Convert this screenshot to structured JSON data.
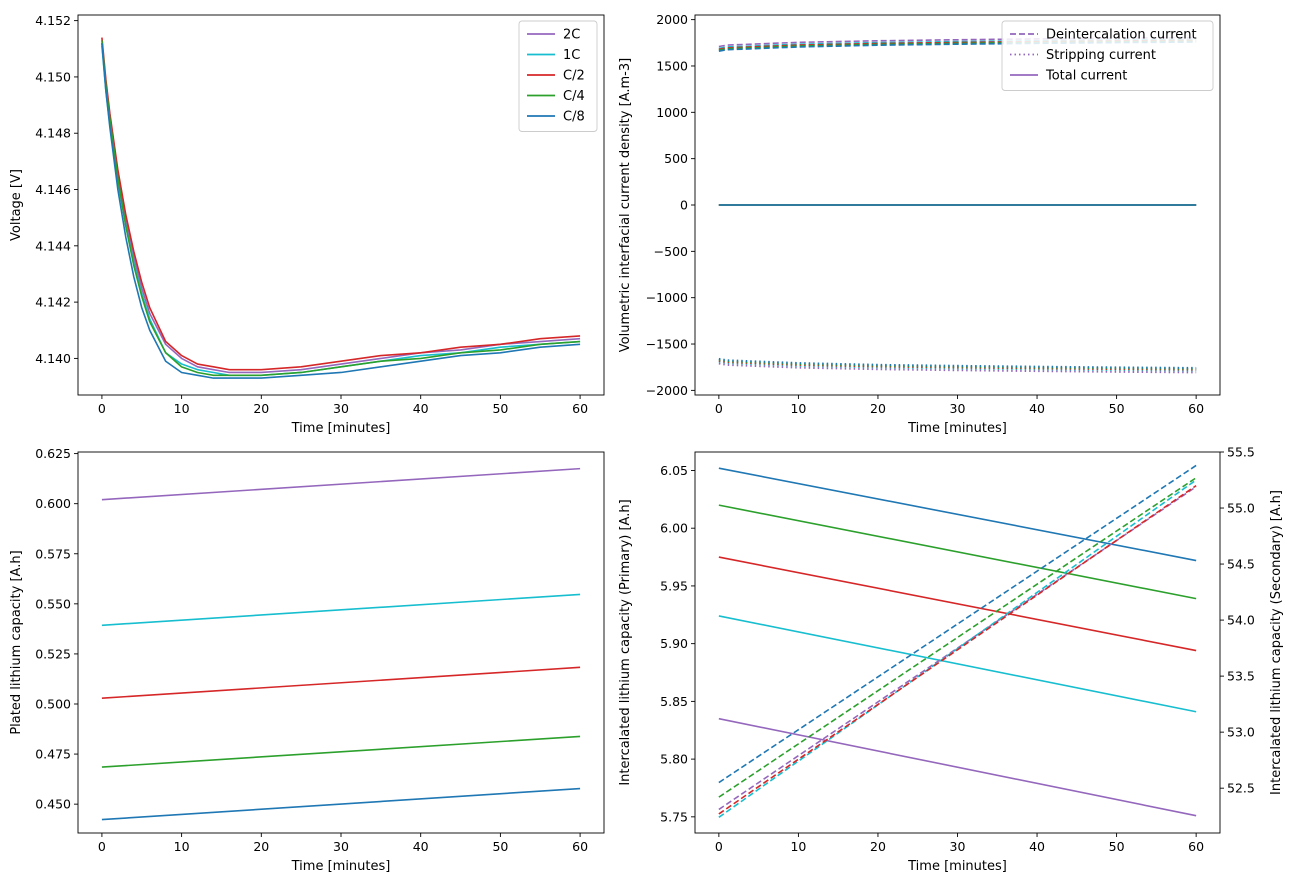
{
  "colors": {
    "2C": "#9467bd",
    "1C": "#17becf",
    "C/2": "#d62728",
    "C/4": "#2ca02c",
    "C/8": "#1f77b4"
  },
  "chart_data": [
    {
      "id": "voltage",
      "type": "line",
      "xlabel": "Time [minutes]",
      "ylabel": "Voltage [V]",
      "xlim": [
        -3,
        63
      ],
      "ylim": [
        4.1387,
        4.1522
      ],
      "xticks": [
        "0",
        "10",
        "20",
        "30",
        "40",
        "50",
        "60"
      ],
      "yticks": [
        "4.140",
        "4.142",
        "4.144",
        "4.146",
        "4.148",
        "4.150",
        "4.152"
      ],
      "legend": {
        "placement": "upper-right",
        "entries": [
          "2C",
          "1C",
          "C/2",
          "C/4",
          "C/8"
        ]
      },
      "series": [
        {
          "name": "2C",
          "color": "#9467bd",
          "x": [
            0,
            0.5,
            1,
            2,
            3,
            4,
            5,
            6,
            8,
            10,
            12,
            14,
            16,
            18,
            20,
            25,
            30,
            35,
            40,
            45,
            50,
            55,
            60
          ],
          "y": [
            4.1512,
            4.1497,
            4.1485,
            4.1465,
            4.1449,
            4.1436,
            4.1425,
            4.1416,
            4.1405,
            4.14,
            4.1397,
            4.1396,
            4.1395,
            4.1395,
            4.1395,
            4.1396,
            4.1398,
            4.14,
            4.1402,
            4.1403,
            4.1405,
            4.1406,
            4.1407
          ]
        },
        {
          "name": "1C",
          "color": "#17becf",
          "x": [
            0,
            0.5,
            1,
            2,
            3,
            4,
            5,
            6,
            8,
            10,
            12,
            14,
            16,
            18,
            20,
            25,
            30,
            35,
            40,
            45,
            50,
            55,
            60
          ],
          "y": [
            4.1511,
            4.1495,
            4.1483,
            4.1463,
            4.1447,
            4.1434,
            4.1423,
            4.1414,
            4.1402,
            4.1398,
            4.1396,
            4.1395,
            4.1394,
            4.1394,
            4.1394,
            4.1395,
            4.1397,
            4.1399,
            4.1401,
            4.1402,
            4.1404,
            4.1405,
            4.1406
          ]
        },
        {
          "name": "C/2",
          "color": "#d62728",
          "x": [
            0,
            0.5,
            1,
            2,
            3,
            4,
            5,
            6,
            8,
            10,
            12,
            14,
            16,
            18,
            20,
            25,
            30,
            35,
            40,
            45,
            50,
            55,
            60
          ],
          "y": [
            4.1514,
            4.1499,
            4.1487,
            4.1467,
            4.1451,
            4.1438,
            4.1427,
            4.1418,
            4.1406,
            4.1401,
            4.1398,
            4.1397,
            4.1396,
            4.1396,
            4.1396,
            4.1397,
            4.1399,
            4.1401,
            4.1402,
            4.1404,
            4.1405,
            4.1407,
            4.1408
          ]
        },
        {
          "name": "C/4",
          "color": "#2ca02c",
          "x": [
            0,
            0.5,
            1,
            2,
            3,
            4,
            5,
            6,
            8,
            10,
            12,
            14,
            16,
            18,
            20,
            25,
            30,
            35,
            40,
            45,
            50,
            55,
            60
          ],
          "y": [
            4.1513,
            4.1497,
            4.1485,
            4.1464,
            4.1447,
            4.1433,
            4.1422,
            4.1413,
            4.1402,
            4.1397,
            4.1395,
            4.1394,
            4.1394,
            4.1394,
            4.1394,
            4.1395,
            4.1397,
            4.1399,
            4.14,
            4.1402,
            4.1403,
            4.1405,
            4.1406
          ]
        },
        {
          "name": "C/8",
          "color": "#1f77b4",
          "x": [
            0,
            0.5,
            1,
            2,
            3,
            4,
            5,
            6,
            8,
            10,
            12,
            14,
            16,
            18,
            20,
            25,
            30,
            35,
            40,
            45,
            50,
            55,
            60
          ],
          "y": [
            4.1512,
            4.1495,
            4.1482,
            4.146,
            4.1443,
            4.1429,
            4.1418,
            4.141,
            4.1399,
            4.1395,
            4.1394,
            4.1393,
            4.1393,
            4.1393,
            4.1393,
            4.1394,
            4.1395,
            4.1397,
            4.1399,
            4.1401,
            4.1402,
            4.1404,
            4.1405
          ]
        }
      ]
    },
    {
      "id": "current-density",
      "type": "line",
      "xlabel": "Time [minutes]",
      "ylabel": "Volumetric interfacial current density [A.m-3]",
      "xlim": [
        -3,
        63
      ],
      "ylim": [
        -2050,
        2050
      ],
      "xticks": [
        "0",
        "10",
        "20",
        "30",
        "40",
        "50",
        "60"
      ],
      "yticks": [
        "−2000",
        "−1500",
        "−1000",
        "−500",
        "0",
        "500",
        "1000",
        "1500",
        "2000"
      ],
      "legend": {
        "placement": "upper-right",
        "entries": [
          {
            "label": "Deintercalation current",
            "style": "dashed"
          },
          {
            "label": "Stripping current",
            "style": "dotted"
          },
          {
            "label": "Total current",
            "style": "solid"
          }
        ]
      },
      "series": [
        {
          "rate": "2C",
          "kind": "deintercalation",
          "color": "#9467bd",
          "x": [
            0,
            1,
            10,
            20,
            30,
            40,
            50,
            60
          ],
          "y": [
            1710,
            1725,
            1755,
            1772,
            1783,
            1792,
            1800,
            1806
          ]
        },
        {
          "rate": "1C",
          "kind": "deintercalation",
          "color": "#17becf",
          "x": [
            0,
            1,
            10,
            20,
            30,
            40,
            50,
            60
          ],
          "y": [
            1690,
            1705,
            1735,
            1752,
            1763,
            1772,
            1780,
            1786
          ]
        },
        {
          "rate": "C/2",
          "kind": "deintercalation",
          "color": "#d62728",
          "x": [
            0,
            1,
            10,
            20,
            30,
            40,
            50,
            60
          ],
          "y": [
            1680,
            1695,
            1725,
            1742,
            1753,
            1762,
            1770,
            1776
          ]
        },
        {
          "rate": "C/4",
          "kind": "deintercalation",
          "color": "#2ca02c",
          "x": [
            0,
            1,
            10,
            20,
            30,
            40,
            50,
            60
          ],
          "y": [
            1670,
            1685,
            1715,
            1733,
            1744,
            1753,
            1761,
            1767
          ]
        },
        {
          "rate": "C/8",
          "kind": "deintercalation",
          "color": "#1f77b4",
          "x": [
            0,
            1,
            10,
            20,
            30,
            40,
            50,
            60
          ],
          "y": [
            1660,
            1675,
            1705,
            1724,
            1735,
            1744,
            1752,
            1758
          ]
        },
        {
          "rate": "2C",
          "kind": "stripping",
          "color": "#9467bd",
          "x": [
            0,
            1,
            10,
            20,
            30,
            40,
            50,
            60
          ],
          "y": [
            -1710,
            -1725,
            -1755,
            -1772,
            -1783,
            -1792,
            -1800,
            -1806
          ]
        },
        {
          "rate": "1C",
          "kind": "stripping",
          "color": "#17becf",
          "x": [
            0,
            1,
            10,
            20,
            30,
            40,
            50,
            60
          ],
          "y": [
            -1690,
            -1705,
            -1735,
            -1752,
            -1763,
            -1772,
            -1780,
            -1786
          ]
        },
        {
          "rate": "C/2",
          "kind": "stripping",
          "color": "#d62728",
          "x": [
            0,
            1,
            10,
            20,
            30,
            40,
            50,
            60
          ],
          "y": [
            -1680,
            -1695,
            -1725,
            -1742,
            -1753,
            -1762,
            -1770,
            -1776
          ]
        },
        {
          "rate": "C/4",
          "kind": "stripping",
          "color": "#2ca02c",
          "x": [
            0,
            1,
            10,
            20,
            30,
            40,
            50,
            60
          ],
          "y": [
            -1670,
            -1685,
            -1715,
            -1733,
            -1744,
            -1753,
            -1761,
            -1767
          ]
        },
        {
          "rate": "C/8",
          "kind": "stripping",
          "color": "#1f77b4",
          "x": [
            0,
            1,
            10,
            20,
            30,
            40,
            50,
            60
          ],
          "y": [
            -1660,
            -1675,
            -1705,
            -1724,
            -1735,
            -1744,
            -1752,
            -1758
          ]
        },
        {
          "rate": "2C",
          "kind": "total",
          "color": "#9467bd",
          "x": [
            0,
            60
          ],
          "y": [
            0,
            0
          ]
        },
        {
          "rate": "1C",
          "kind": "total",
          "color": "#17becf",
          "x": [
            0,
            60
          ],
          "y": [
            0,
            0
          ]
        },
        {
          "rate": "C/2",
          "kind": "total",
          "color": "#d62728",
          "x": [
            0,
            60
          ],
          "y": [
            0,
            0
          ]
        },
        {
          "rate": "C/4",
          "kind": "total",
          "color": "#2ca02c",
          "x": [
            0,
            60
          ],
          "y": [
            0,
            0
          ]
        },
        {
          "rate": "C/8",
          "kind": "total",
          "color": "#1f77b4",
          "x": [
            0,
            60
          ],
          "y": [
            0,
            0
          ]
        }
      ]
    },
    {
      "id": "plated-capacity",
      "type": "line",
      "xlabel": "Time [minutes]",
      "ylabel": "Plated lithium capacity [A.h]",
      "xlim": [
        -3,
        63
      ],
      "ylim": [
        0.4356,
        0.6258
      ],
      "xticks": [
        "0",
        "10",
        "20",
        "30",
        "40",
        "50",
        "60"
      ],
      "yticks": [
        "0.450",
        "0.475",
        "0.500",
        "0.525",
        "0.550",
        "0.575",
        "0.600",
        "0.625"
      ],
      "series": [
        {
          "rate": "2C",
          "color": "#9467bd",
          "x": [
            0,
            60
          ],
          "y": [
            0.602,
            0.6175
          ]
        },
        {
          "rate": "1C",
          "color": "#17becf",
          "x": [
            0,
            60
          ],
          "y": [
            0.5393,
            0.5547
          ]
        },
        {
          "rate": "C/2",
          "color": "#d62728",
          "x": [
            0,
            60
          ],
          "y": [
            0.5029,
            0.5183
          ]
        },
        {
          "rate": "C/4",
          "color": "#2ca02c",
          "x": [
            0,
            60
          ],
          "y": [
            0.4685,
            0.4838
          ]
        },
        {
          "rate": "C/8",
          "color": "#1f77b4",
          "x": [
            0,
            60
          ],
          "y": [
            0.4423,
            0.4578
          ]
        }
      ]
    },
    {
      "id": "intercalated-capacity",
      "type": "line",
      "xlabel": "Time [minutes]",
      "ylabel": "Intercalated lithium capacity (Primary) [A.h]",
      "ylabel2": "Intercalated lithium capacity (Secondary) [A.h]",
      "xlim": [
        -3,
        63
      ],
      "ylim": [
        5.736,
        6.066
      ],
      "ylim2": [
        52.1,
        55.5
      ],
      "xticks": [
        "0",
        "10",
        "20",
        "30",
        "40",
        "50",
        "60"
      ],
      "yticks": [
        "5.75",
        "5.80",
        "5.85",
        "5.90",
        "5.95",
        "6.00",
        "6.05"
      ],
      "yticks2": [
        "52.5",
        "53.0",
        "53.5",
        "54.0",
        "54.5",
        "55.0",
        "55.5"
      ],
      "series": [
        {
          "rate": "2C",
          "axis": "primary",
          "style": "solid",
          "color": "#9467bd",
          "x": [
            0,
            60
          ],
          "y": [
            5.835,
            5.751
          ]
        },
        {
          "rate": "1C",
          "axis": "primary",
          "style": "solid",
          "color": "#17becf",
          "x": [
            0,
            60
          ],
          "y": [
            5.924,
            5.841
          ]
        },
        {
          "rate": "C/2",
          "axis": "primary",
          "style": "solid",
          "color": "#d62728",
          "x": [
            0,
            60
          ],
          "y": [
            5.975,
            5.894
          ]
        },
        {
          "rate": "C/4",
          "axis": "primary",
          "style": "solid",
          "color": "#2ca02c",
          "x": [
            0,
            60
          ],
          "y": [
            6.02,
            5.939
          ]
        },
        {
          "rate": "C/8",
          "axis": "primary",
          "style": "solid",
          "color": "#1f77b4",
          "x": [
            0,
            60
          ],
          "y": [
            6.052,
            5.972
          ]
        },
        {
          "rate": "2C",
          "axis": "secondary",
          "style": "dashed",
          "color": "#9467bd",
          "x": [
            0,
            60
          ],
          "y": [
            52.31,
            55.19
          ]
        },
        {
          "rate": "1C",
          "axis": "secondary",
          "style": "dashed",
          "color": "#17becf",
          "x": [
            0,
            60
          ],
          "y": [
            52.24,
            55.25
          ]
        },
        {
          "rate": "C/2",
          "axis": "secondary",
          "style": "dashed",
          "color": "#d62728",
          "x": [
            0,
            60
          ],
          "y": [
            52.27,
            55.2
          ]
        },
        {
          "rate": "C/4",
          "axis": "secondary",
          "style": "dashed",
          "color": "#2ca02c",
          "x": [
            0,
            60
          ],
          "y": [
            52.42,
            55.27
          ]
        },
        {
          "rate": "C/8",
          "axis": "secondary",
          "style": "dashed",
          "color": "#1f77b4",
          "x": [
            0,
            60
          ],
          "y": [
            52.55,
            55.38
          ]
        }
      ]
    }
  ]
}
